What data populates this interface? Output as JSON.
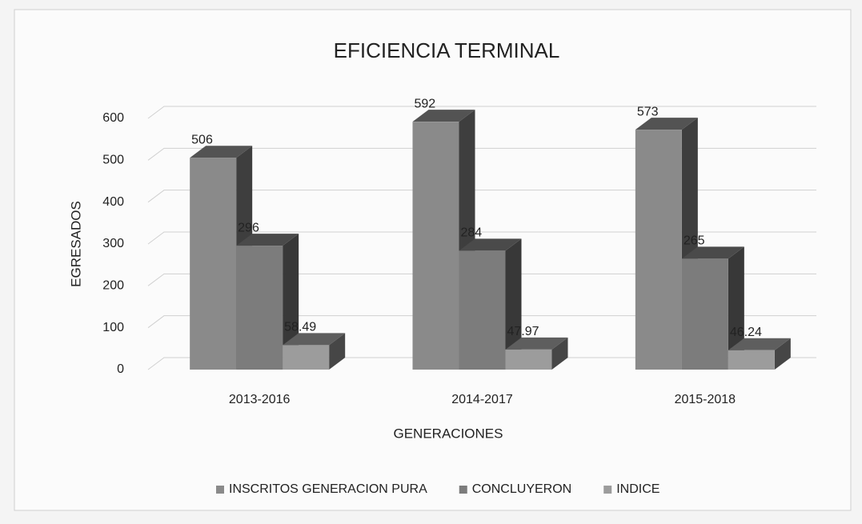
{
  "chart_data": {
    "type": "bar3d",
    "title": "EFICIENCIA TERMINAL",
    "x_label": "GENERACIONES",
    "y_label": "EGRESADOS",
    "categories": [
      "2013-2016",
      "2014-2017",
      "2015-2018"
    ],
    "series": [
      {
        "name": "INSCRITOS GENERACION PURA",
        "color": "#8a8a8a",
        "values": [
          506,
          592,
          573
        ]
      },
      {
        "name": "CONCLUYERON",
        "color": "#7c7c7c",
        "values": [
          296,
          284,
          265
        ]
      },
      {
        "name": "INDICE",
        "color": "#9c9c9c",
        "values": [
          58.49,
          47.97,
          46.24
        ]
      }
    ],
    "ylim": [
      0,
      600
    ],
    "yticks": [
      0,
      100,
      200,
      300,
      400,
      500,
      600
    ],
    "grid": true,
    "legend": "bottom"
  }
}
